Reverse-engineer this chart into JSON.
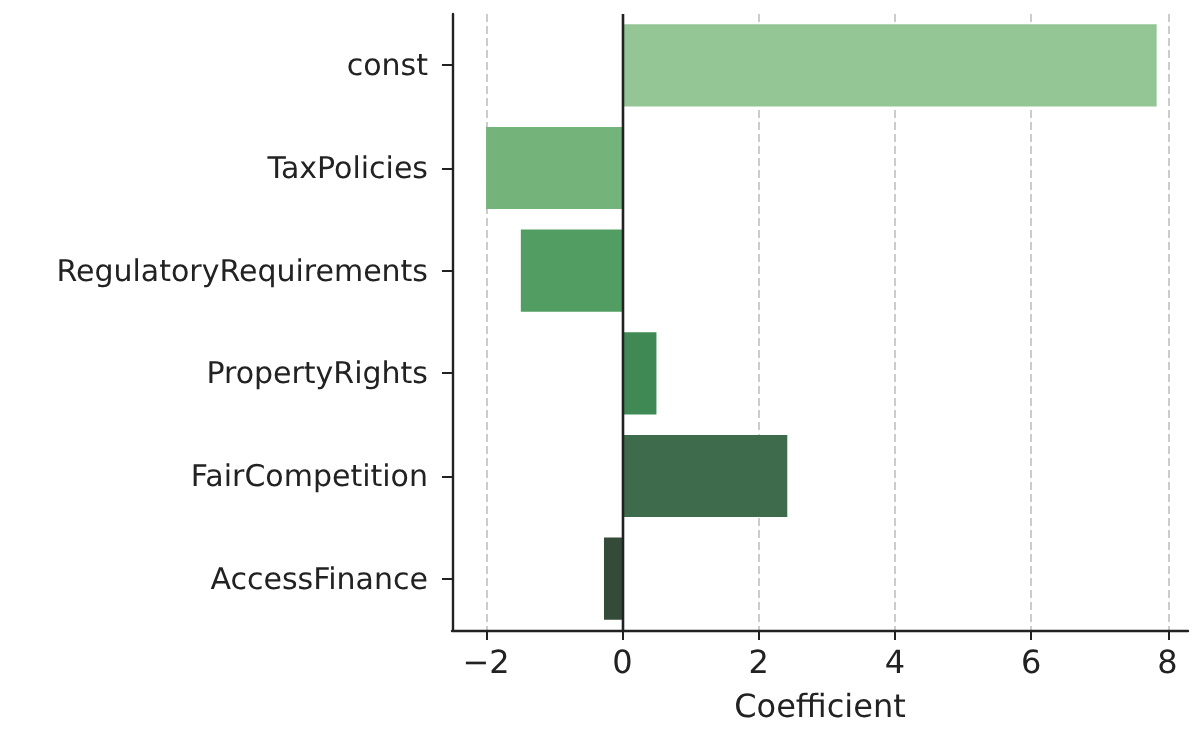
{
  "chart_data": {
    "type": "bar",
    "orientation": "horizontal",
    "xlabel": "Coefficient",
    "categories": [
      "const",
      "TaxPolicies",
      "RegulatoryRequirements",
      "PropertyRights",
      "FairCompetition",
      "AccessFinance"
    ],
    "values": [
      7.84,
      -2.0,
      -1.49,
      0.5,
      2.42,
      -0.27
    ],
    "colors": [
      "#93c595",
      "#74b37a",
      "#529e62",
      "#3f8a54",
      "#3d6b4c",
      "#344b3a"
    ],
    "xlim": [
      -2.5,
      8.3
    ],
    "xticks": [
      {
        "value": -2,
        "label": "−2"
      },
      0,
      2,
      4,
      6,
      8
    ],
    "grid": "x",
    "ref_lines": [
      {
        "axis": "x",
        "value": 0,
        "color": "#222222",
        "line_style": "solid"
      }
    ]
  }
}
